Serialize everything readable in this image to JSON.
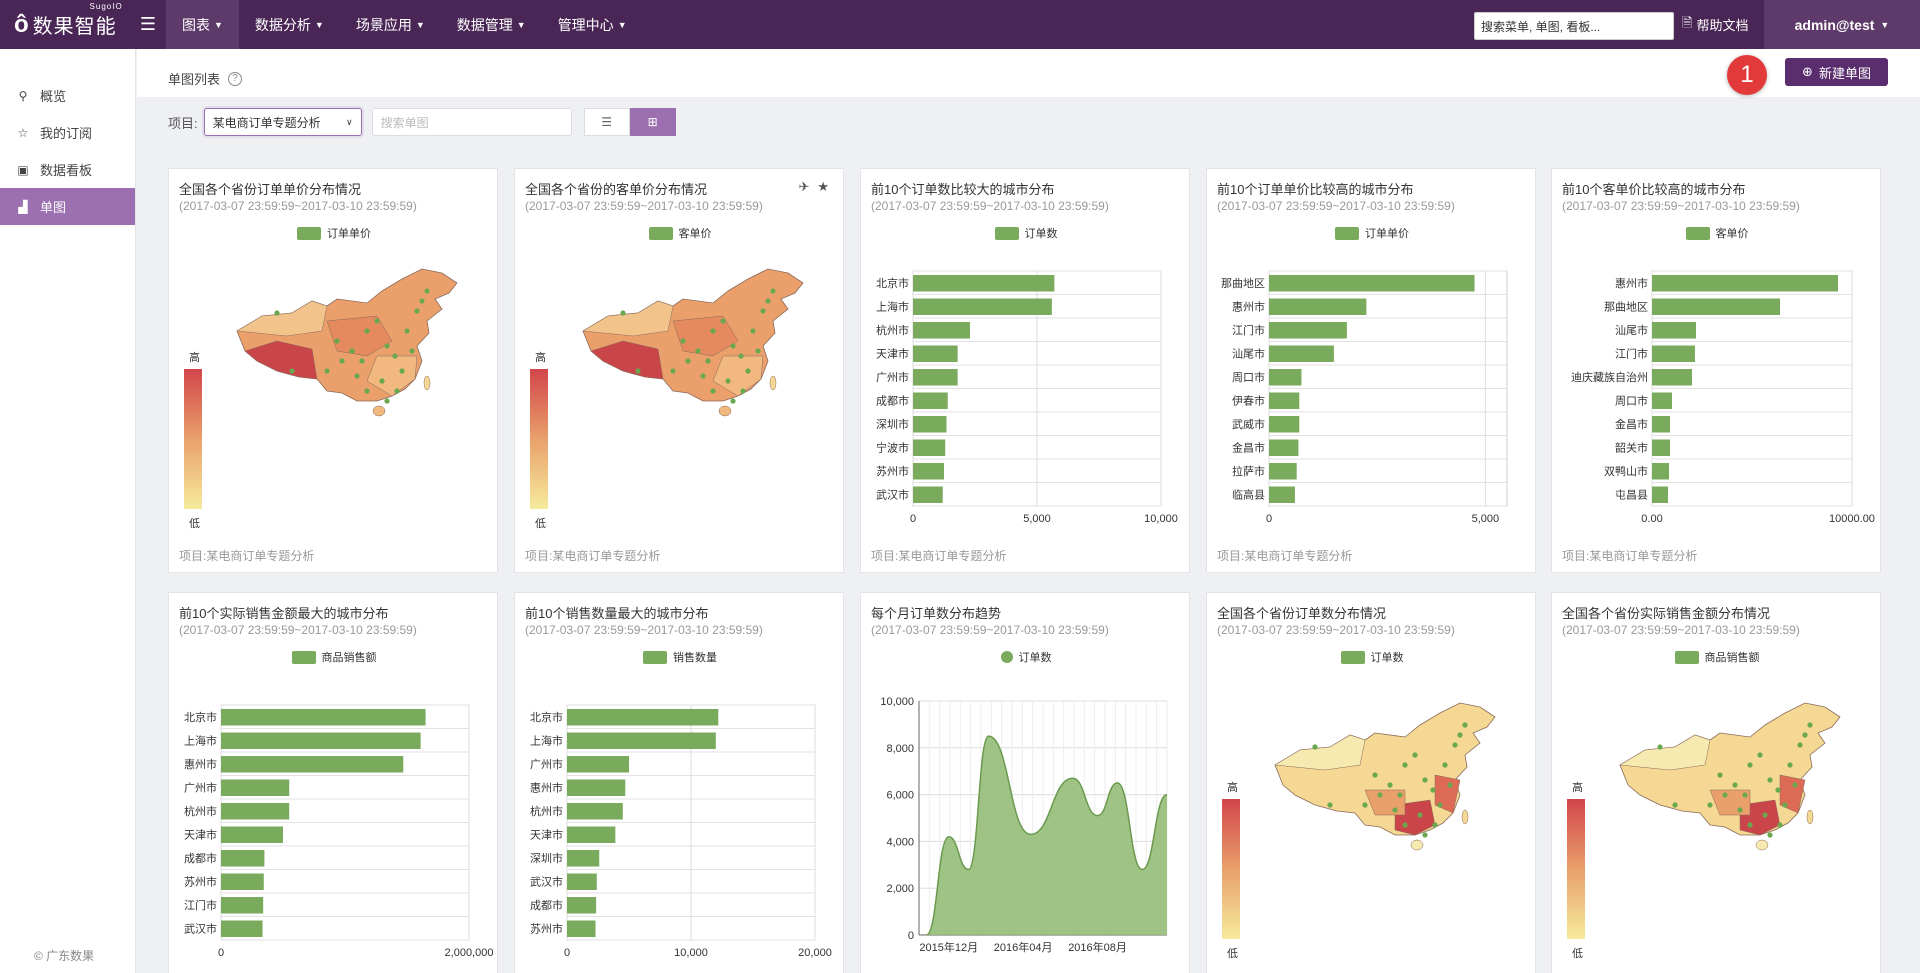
{
  "topbar": {
    "logo_text": "数果智能",
    "logo_sup": "SugoIO",
    "nav": [
      {
        "label": "图表",
        "active": true
      },
      {
        "label": "数据分析"
      },
      {
        "label": "场景应用"
      },
      {
        "label": "数据管理"
      },
      {
        "label": "管理中心"
      }
    ],
    "search_placeholder": "搜索菜单, 单图, 看板...",
    "help_label": "帮助文档",
    "user_label": "admin@test"
  },
  "sidebar": {
    "items": [
      {
        "label": "概览",
        "icon": "pin-icon"
      },
      {
        "label": "我的订阅",
        "icon": "star-icon"
      },
      {
        "label": "数据看板",
        "icon": "image-icon"
      },
      {
        "label": "单图",
        "icon": "chart-icon",
        "active": true
      }
    ],
    "copyright": "© 广东数果"
  },
  "header": {
    "title": "单图列表",
    "badge": "1",
    "new_button": "新建单图"
  },
  "filters": {
    "project_label": "项目:",
    "project_value": "某电商订单专题分析",
    "search_placeholder": "搜索单图"
  },
  "colors": {
    "bar": "#7aab5d",
    "accent": "#5a2d6e",
    "map_high": "#d2454a",
    "map_low": "#f6eb9c"
  },
  "cards": [
    {
      "title": "全国各个省份订单单价分布情况",
      "range": "(2017-03-07 23:59:59~2017-03-10 23:59:59)",
      "legend": "订单单价",
      "footer": "项目:某电商订单专题分析",
      "high": "高",
      "low": "低"
    },
    {
      "title": "全国各个省份的客单价分布情况",
      "range": "(2017-03-07 23:59:59~2017-03-10 23:59:59)",
      "legend": "客单价",
      "footer": "项目:某电商订单专题分析",
      "high": "高",
      "low": "低"
    },
    {
      "title": "前10个订单数比较大的城市分布",
      "range": "(2017-03-07 23:59:59~2017-03-10 23:59:59)",
      "legend": "订单数",
      "footer": "项目:某电商订单专题分析"
    },
    {
      "title": "前10个订单单价比较高的城市分布",
      "range": "(2017-03-07 23:59:59~2017-03-10 23:59:59)",
      "legend": "订单单价",
      "footer": "项目:某电商订单专题分析"
    },
    {
      "title": "前10个客单价比较高的城市分布",
      "range": "(2017-03-07 23:59:59~2017-03-10 23:59:59)",
      "legend": "客单价",
      "footer": "项目:某电商订单专题分析"
    },
    {
      "title": "前10个实际销售金额最大的城市分布",
      "range": "(2017-03-07 23:59:59~2017-03-10 23:59:59)",
      "legend": "商品销售额"
    },
    {
      "title": "前10个销售数量最大的城市分布",
      "range": "(2017-03-07 23:59:59~2017-03-10 23:59:59)",
      "legend": "销售数量"
    },
    {
      "title": "每个月订单数分布趋势",
      "range": "(2017-03-07 23:59:59~2017-03-10 23:59:59)",
      "legend": "订单数"
    },
    {
      "title": "全国各个省份订单数分布情况",
      "range": "(2017-03-07 23:59:59~2017-03-10 23:59:59)",
      "legend": "订单数",
      "high": "高",
      "low": "低"
    },
    {
      "title": "全国各个省份实际销售金额分布情况",
      "range": "(2017-03-07 23:59:59~2017-03-10 23:59:59)",
      "legend": "商品销售额",
      "high": "高",
      "low": "低"
    }
  ],
  "chart_data": [
    {
      "type": "bar",
      "orientation": "horizontal",
      "series_name": "订单数",
      "categories": [
        "北京市",
        "上海市",
        "杭州市",
        "天津市",
        "广州市",
        "成都市",
        "深圳市",
        "宁波市",
        "苏州市",
        "武汉市"
      ],
      "values": [
        5700,
        5600,
        2300,
        1800,
        1800,
        1400,
        1350,
        1300,
        1250,
        1200
      ],
      "xlim": [
        0,
        10000
      ],
      "ticks": [
        "0",
        "5,000",
        "10,000"
      ]
    },
    {
      "type": "bar",
      "orientation": "horizontal",
      "series_name": "订单单价",
      "categories": [
        "那曲地区",
        "惠州市",
        "江门市",
        "汕尾市",
        "周口市",
        "伊春市",
        "武威市",
        "金昌市",
        "拉萨市",
        "临高县"
      ],
      "values": [
        4750,
        2250,
        1800,
        1500,
        750,
        700,
        700,
        680,
        640,
        600
      ],
      "xlim": [
        0,
        5500
      ],
      "ticks": [
        "0",
        "5,000"
      ]
    },
    {
      "type": "bar",
      "orientation": "horizontal",
      "series_name": "客单价",
      "categories": [
        "惠州市",
        "那曲地区",
        "汕尾市",
        "江门市",
        "迪庆藏族自治州",
        "周口市",
        "金昌市",
        "韶关市",
        "双鸭山市",
        "屯昌县"
      ],
      "values": [
        9300,
        6400,
        2200,
        2150,
        2000,
        1000,
        900,
        900,
        850,
        800
      ],
      "xlim": [
        0,
        10000
      ],
      "ticks": [
        "0.00",
        "10000.00"
      ]
    },
    {
      "type": "bar",
      "orientation": "horizontal",
      "series_name": "商品销售额",
      "categories": [
        "北京市",
        "上海市",
        "惠州市",
        "广州市",
        "杭州市",
        "天津市",
        "成都市",
        "苏州市",
        "江门市",
        "武汉市"
      ],
      "values": [
        1650000,
        1610000,
        1470000,
        550000,
        550000,
        500000,
        350000,
        345000,
        340000,
        335000
      ],
      "xlim": [
        0,
        2000000
      ],
      "ticks": [
        "0",
        "2,000,000"
      ]
    },
    {
      "type": "bar",
      "orientation": "horizontal",
      "series_name": "销售数量",
      "categories": [
        "北京市",
        "上海市",
        "广州市",
        "惠州市",
        "杭州市",
        "天津市",
        "深圳市",
        "武汉市",
        "成都市",
        "苏州市"
      ],
      "values": [
        12200,
        12000,
        5000,
        4700,
        4500,
        3900,
        2600,
        2400,
        2350,
        2300
      ],
      "xlim": [
        0,
        20000
      ],
      "ticks": [
        "0",
        "10,000",
        "20,000"
      ]
    },
    {
      "type": "area",
      "series_name": "订单数",
      "x": [
        "2015-10",
        "2015-12",
        "2016-02",
        "2016-04",
        "2016-06",
        "2016-08",
        "2016-10",
        "2016-12"
      ],
      "y": [
        0,
        4200,
        2800,
        8500,
        4300,
        6700,
        6500,
        2800
      ],
      "y_end": 6000,
      "ylim": [
        0,
        10000
      ],
      "y_ticks": [
        "0",
        "2,000",
        "4,000",
        "6,000",
        "8,000",
        "10,000"
      ],
      "x_ticks": [
        "2015年12月",
        "2016年04月",
        "2016年08月"
      ]
    }
  ]
}
